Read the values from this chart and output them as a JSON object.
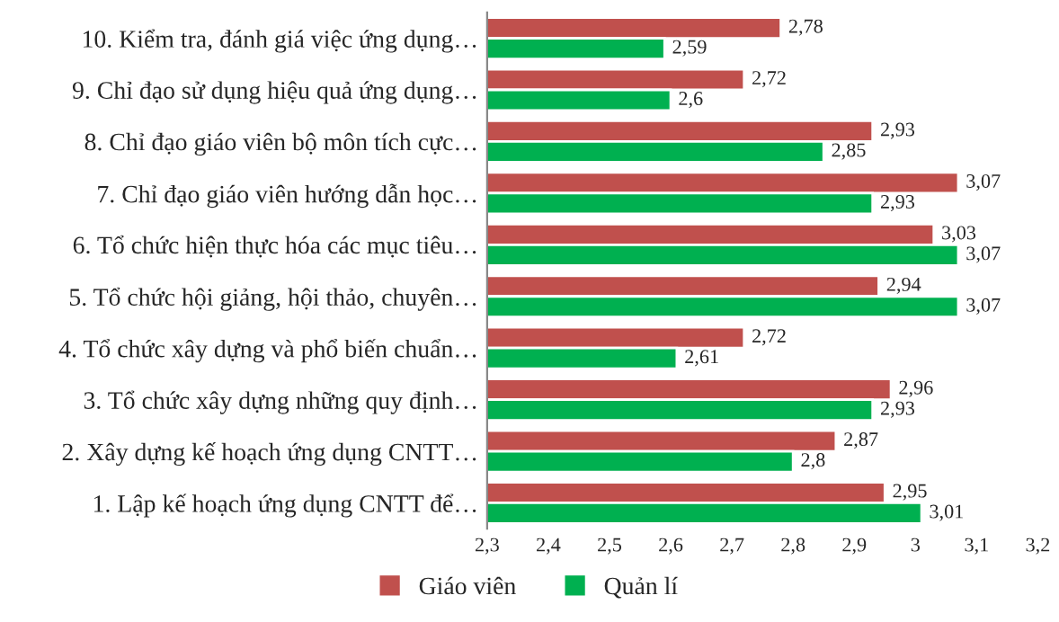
{
  "chart_data": {
    "type": "bar",
    "orientation": "horizontal",
    "categories": [
      "10. Kiểm tra, đánh giá việc ứng dụng…",
      "9. Chỉ đạo sử dụng hiệu quả ứng dụng…",
      "8. Chỉ đạo giáo viên bộ môn tích cực…",
      "7. Chỉ đạo giáo viên hướng dẫn học…",
      "6. Tổ chức hiện thực hóa các mục tiêu…",
      "5. Tổ chức hội giảng, hội thảo, chuyên…",
      "4. Tổ chức xây dựng và phổ biến chuẩn…",
      "3. Tổ chức xây dựng những quy định…",
      "2. Xây dựng kế hoạch ứng dụng CNTT…",
      "1. Lập kế hoạch ứng dụng CNTT để…"
    ],
    "series": [
      {
        "name": "Giáo viên",
        "color": "#c0504d",
        "values": [
          2.78,
          2.72,
          2.93,
          3.07,
          3.03,
          2.94,
          2.72,
          2.96,
          2.87,
          2.95
        ],
        "value_labels": [
          "2,78",
          "2,72",
          "2,93",
          "3,07",
          "3,03",
          "2,94",
          "2,72",
          "2,96",
          "2,87",
          "2,95"
        ]
      },
      {
        "name": "Quản lí",
        "color": "#00b050",
        "values": [
          2.59,
          2.6,
          2.85,
          2.93,
          3.07,
          3.07,
          2.61,
          2.93,
          2.8,
          3.01
        ],
        "value_labels": [
          "2,59",
          "2,6",
          "2,85",
          "2,93",
          "3,07",
          "3,07",
          "2,61",
          "2,93",
          "2,8",
          "3,01"
        ]
      }
    ],
    "xlim": [
      2.3,
      3.2
    ],
    "xticks": [
      {
        "value": 2.3,
        "label": "2,3"
      },
      {
        "value": 2.4,
        "label": "2,4"
      },
      {
        "value": 2.5,
        "label": "2,5"
      },
      {
        "value": 2.6,
        "label": "2,6"
      },
      {
        "value": 2.7,
        "label": "2,7"
      },
      {
        "value": 2.8,
        "label": "2,8"
      },
      {
        "value": 2.9,
        "label": "2,9"
      },
      {
        "value": 3.0,
        "label": "3"
      },
      {
        "value": 3.1,
        "label": "3,1"
      },
      {
        "value": 3.2,
        "label": "3,2"
      }
    ],
    "grid": false,
    "legend": "bottom"
  }
}
